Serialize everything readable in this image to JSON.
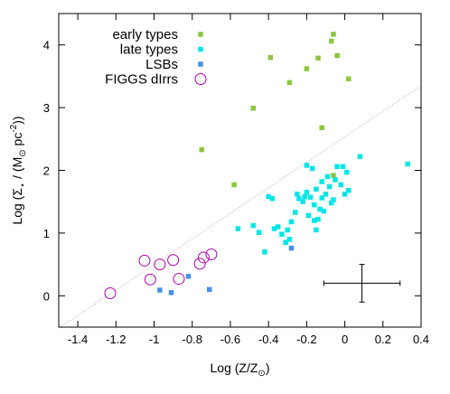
{
  "chart_data": {
    "type": "scatter",
    "xlabel_main": "Log (Z/Z",
    "xlabel_sub": "⊙",
    "xlabel_close": ")",
    "ylabel_parts": [
      "Log (Σ",
      "⋆",
      " / (M",
      "⊙",
      " pc",
      "-2",
      "))"
    ],
    "xlim": [
      -1.5,
      0.4
    ],
    "ylim": [
      -0.5,
      4.5
    ],
    "x_ticks": [
      -1.4,
      -1.2,
      -1.0,
      -0.8,
      -0.6,
      -0.4,
      -0.2,
      0,
      0.2,
      0.4
    ],
    "x_tick_labels": [
      "-1.4",
      "-1.2",
      "-1",
      "-0.8",
      "-0.6",
      "-0.4",
      "-0.2",
      "0",
      "0.2",
      "0.4"
    ],
    "y_ticks": [
      0,
      1,
      2,
      3,
      4
    ],
    "y_tick_labels": [
      "0",
      "1",
      "2",
      "3",
      "4"
    ],
    "grid": false,
    "legend_position": "top-left",
    "reference_line": {
      "x": [
        -1.5,
        0.4
      ],
      "y": [
        -0.52,
        3.35
      ],
      "style": "dotted",
      "color": "#c8c8c8"
    },
    "error_bar": {
      "x": 0.09,
      "y": 0.2,
      "xerr_low": 0.2,
      "xerr_high": 0.2,
      "yerr_low": 0.3,
      "yerr_high": 0.3
    },
    "series": [
      {
        "name": "early types",
        "marker": "square",
        "color": "#8dc63f",
        "points": [
          [
            -0.75,
            2.33
          ],
          [
            -0.58,
            1.77
          ],
          [
            -0.48,
            2.99
          ],
          [
            -0.39,
            3.8
          ],
          [
            -0.29,
            3.4
          ],
          [
            -0.2,
            3.62
          ],
          [
            -0.14,
            3.79
          ],
          [
            -0.12,
            2.68
          ],
          [
            -0.07,
            4.06
          ],
          [
            -0.06,
            4.17
          ],
          [
            -0.04,
            3.83
          ],
          [
            0.02,
            3.46
          ],
          [
            -0.06,
            1.92
          ]
        ]
      },
      {
        "name": "late types",
        "marker": "square",
        "color": "#00e6e6",
        "points": [
          [
            -0.56,
            1.07
          ],
          [
            -0.48,
            1.12
          ],
          [
            -0.45,
            1.01
          ],
          [
            -0.42,
            0.7
          ],
          [
            -0.4,
            1.58
          ],
          [
            -0.38,
            1.55
          ],
          [
            -0.37,
            1.07
          ],
          [
            -0.35,
            1.1
          ],
          [
            -0.33,
            0.98
          ],
          [
            -0.31,
            0.85
          ],
          [
            -0.3,
            1.05
          ],
          [
            -0.29,
            0.9
          ],
          [
            -0.26,
            1.33
          ],
          [
            -0.25,
            1.62
          ],
          [
            -0.24,
            1.55
          ],
          [
            -0.22,
            1.5
          ],
          [
            -0.21,
            1.58
          ],
          [
            -0.2,
            1.65
          ],
          [
            -0.2,
            2.08
          ],
          [
            -0.19,
            1.28
          ],
          [
            -0.18,
            1.57
          ],
          [
            -0.17,
            2.03
          ],
          [
            -0.16,
            1.45
          ],
          [
            -0.15,
            1.7
          ],
          [
            -0.14,
            1.22
          ],
          [
            -0.13,
            1.38
          ],
          [
            -0.12,
            1.56
          ],
          [
            -0.12,
            1.82
          ],
          [
            -0.11,
            1.35
          ],
          [
            -0.1,
            1.62
          ],
          [
            -0.09,
            1.9
          ],
          [
            -0.08,
            1.74
          ],
          [
            -0.07,
            1.48
          ],
          [
            -0.06,
            1.53
          ],
          [
            -0.05,
            1.85
          ],
          [
            -0.04,
            2.06
          ],
          [
            -0.02,
            1.77
          ],
          [
            -0.01,
            2.06
          ],
          [
            0.0,
            1.62
          ],
          [
            0.01,
            1.97
          ],
          [
            0.02,
            1.68
          ],
          [
            0.08,
            2.22
          ],
          [
            0.33,
            2.1
          ],
          [
            -0.16,
            1.2
          ],
          [
            -0.28,
            1.18
          ],
          [
            -0.15,
            1.05
          ]
        ]
      },
      {
        "name": "LSBs",
        "marker": "square",
        "color": "#4a90e2",
        "points": [
          [
            -0.97,
            0.09
          ],
          [
            -0.91,
            0.05
          ],
          [
            -0.82,
            0.31
          ],
          [
            -0.71,
            0.1
          ],
          [
            -0.28,
            0.76
          ]
        ]
      },
      {
        "name": "FIGGS dIrrs",
        "marker": "open-circle",
        "color": "#b000b0",
        "points": [
          [
            -1.23,
            0.04
          ],
          [
            -1.05,
            0.56
          ],
          [
            -1.02,
            0.26
          ],
          [
            -0.97,
            0.5
          ],
          [
            -0.9,
            0.57
          ],
          [
            -0.87,
            0.27
          ],
          [
            -0.76,
            0.51
          ],
          [
            -0.74,
            0.61
          ],
          [
            -0.7,
            0.66
          ]
        ]
      }
    ]
  }
}
